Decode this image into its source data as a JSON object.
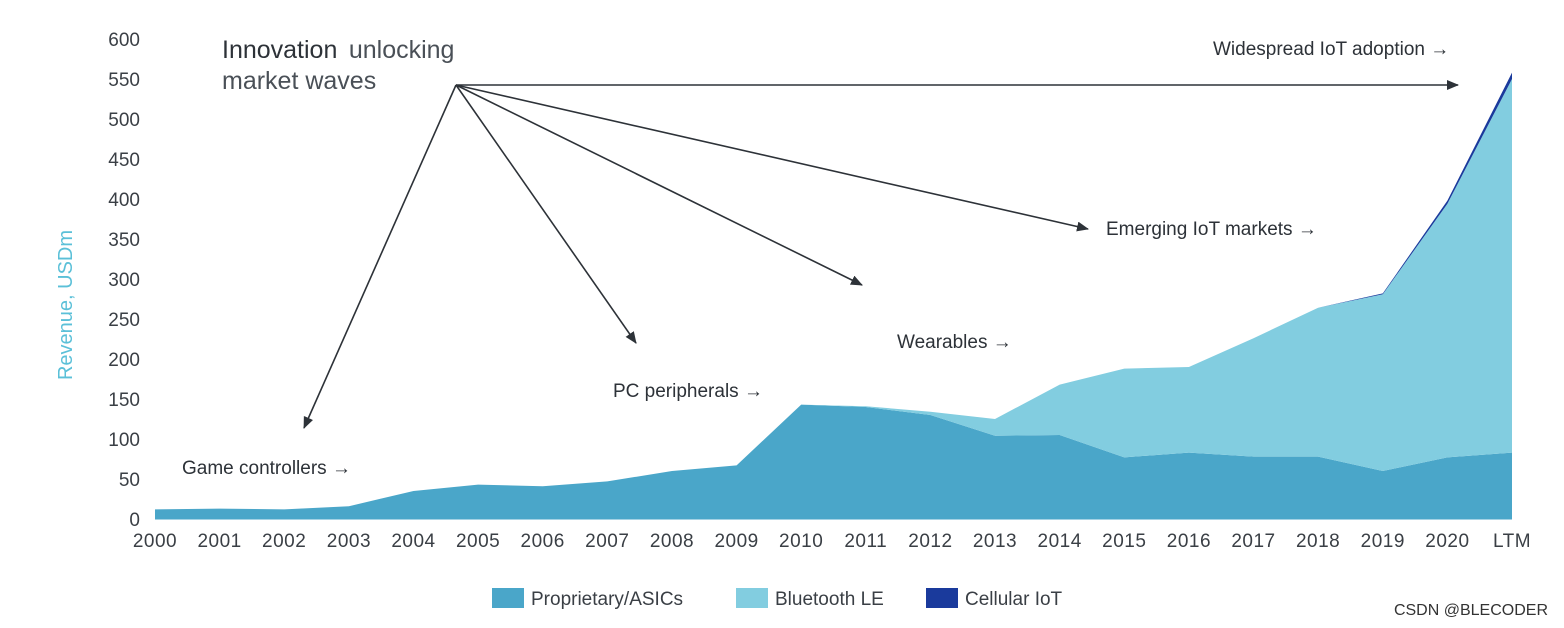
{
  "chart_data": {
    "type": "area",
    "stacked": true,
    "title_bold": "Innovation",
    "title_rest_line1": "unlocking",
    "title_line2": "market waves",
    "ylabel": "Revenue, USDm",
    "xlabel": "",
    "ylim": [
      0,
      600
    ],
    "yticks": [
      0,
      50,
      100,
      150,
      200,
      250,
      300,
      350,
      400,
      450,
      500,
      550,
      600
    ],
    "categories": [
      "2000",
      "2001",
      "2002",
      "2003",
      "2004",
      "2005",
      "2006",
      "2007",
      "2008",
      "2009",
      "2010",
      "2011",
      "2012",
      "2013",
      "2014",
      "2015",
      "2016",
      "2017",
      "2018",
      "2019",
      "2020",
      "LTM"
    ],
    "series": [
      {
        "name": "Proprietary/ASICs",
        "color": "#4aa6c9",
        "values": [
          12,
          13,
          12,
          16,
          35,
          43,
          41,
          47,
          60,
          67,
          143,
          140,
          130,
          104,
          105,
          77,
          83,
          78,
          78,
          60,
          77,
          83
        ]
      },
      {
        "name": "Bluetooth LE",
        "color": "#82cde0",
        "values": [
          0,
          0,
          0,
          0,
          0,
          0,
          0,
          0,
          0,
          0,
          0,
          1,
          4,
          21,
          63,
          111,
          107,
          148,
          186,
          221,
          317,
          467
        ]
      },
      {
        "name": "Cellular IoT",
        "color": "#1a3a9c",
        "values": [
          0,
          0,
          0,
          0,
          0,
          0,
          0,
          0,
          0,
          0,
          0,
          0,
          0,
          0,
          0,
          0,
          0,
          0,
          0,
          1,
          4,
          8
        ]
      }
    ],
    "annotations": [
      {
        "id": "game",
        "text": "Game controllers →"
      },
      {
        "id": "pc",
        "text": "PC peripherals →"
      },
      {
        "id": "wear",
        "text": "Wearables →"
      },
      {
        "id": "emerg",
        "text": "Emerging IoT markets →"
      },
      {
        "id": "wide",
        "text": "Widespread IoT adoption →"
      }
    ],
    "legend": {
      "placement": "bottom-center"
    },
    "grid": false
  },
  "watermark": "CSDN @BLECODER"
}
